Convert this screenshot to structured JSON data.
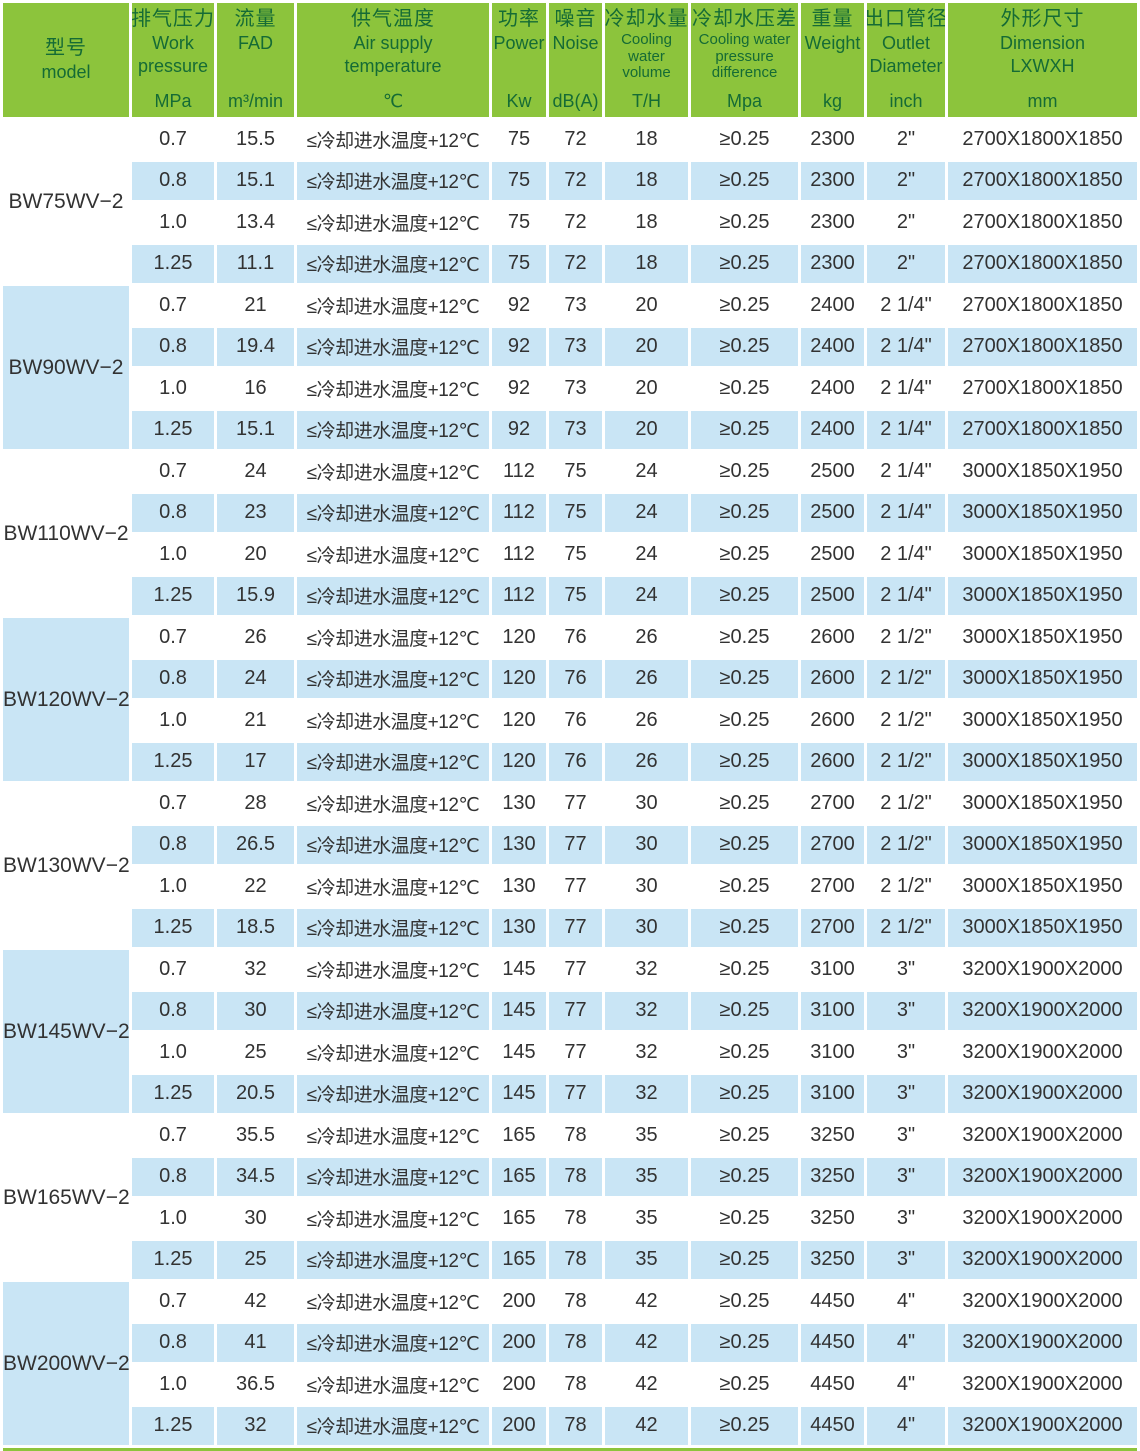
{
  "colors": {
    "header_green": "#8cc43c",
    "header_text_green": "#156b35",
    "row_blue": "#c9e5f5",
    "data_text": "#323232"
  },
  "table": {
    "columns": [
      {
        "id": "model",
        "title": "型号",
        "subtitle_lines": [
          "model"
        ],
        "unit": "",
        "center": true,
        "small": false
      },
      {
        "id": "work_pressure",
        "title": "排气压力",
        "subtitle_lines": [
          "Work",
          "pressure"
        ],
        "unit": "MPa",
        "center": false,
        "small": false
      },
      {
        "id": "fad",
        "title": "流量",
        "subtitle_lines": [
          "FAD"
        ],
        "unit": "m³/min",
        "center": false,
        "small": false
      },
      {
        "id": "air_supply_temp",
        "title": "供气温度",
        "subtitle_lines": [
          "Air supply",
          "temperature"
        ],
        "unit": "℃",
        "center": false,
        "small": false
      },
      {
        "id": "power",
        "title": "功率",
        "subtitle_lines": [
          "Power"
        ],
        "unit": "Kw",
        "center": false,
        "small": false
      },
      {
        "id": "noise",
        "title": "噪音",
        "subtitle_lines": [
          "Noise"
        ],
        "unit": "dB(A)",
        "center": false,
        "small": false
      },
      {
        "id": "cooling_water_volume",
        "title": "冷却水量",
        "subtitle_lines": [
          "Cooling",
          "water",
          "volume"
        ],
        "unit": "T/H",
        "center": false,
        "small": true
      },
      {
        "id": "cooling_water_pressure_diff",
        "title": "冷却水压差",
        "subtitle_lines": [
          "Cooling water",
          "pressure",
          "difference"
        ],
        "unit": "Mpa",
        "center": false,
        "small": true
      },
      {
        "id": "weight",
        "title": "重量",
        "subtitle_lines": [
          "Weight"
        ],
        "unit": "kg",
        "center": false,
        "small": false
      },
      {
        "id": "outlet_diameter",
        "title": "出口管径",
        "subtitle_lines": [
          "Outlet",
          "Diameter"
        ],
        "unit": "inch",
        "center": false,
        "small": false
      },
      {
        "id": "dimension",
        "title": "外形尺寸",
        "subtitle_lines": [
          "Dimension",
          "LXWXH"
        ],
        "unit": "mm",
        "center": false,
        "small": false
      }
    ],
    "groups": [
      {
        "model": "BW75WV−2",
        "rows": [
          [
            "0.7",
            "15.5",
            "≤冷却进水温度+12℃",
            "75",
            "72",
            "18",
            "≥0.25",
            "2300",
            "2\"",
            "2700X1800X1850"
          ],
          [
            "0.8",
            "15.1",
            "≤冷却进水温度+12℃",
            "75",
            "72",
            "18",
            "≥0.25",
            "2300",
            "2\"",
            "2700X1800X1850"
          ],
          [
            "1.0",
            "13.4",
            "≤冷却进水温度+12℃",
            "75",
            "72",
            "18",
            "≥0.25",
            "2300",
            "2\"",
            "2700X1800X1850"
          ],
          [
            "1.25",
            "11.1",
            "≤冷却进水温度+12℃",
            "75",
            "72",
            "18",
            "≥0.25",
            "2300",
            "2\"",
            "2700X1800X1850"
          ]
        ]
      },
      {
        "model": "BW90WV−2",
        "rows": [
          [
            "0.7",
            "21",
            "≤冷却进水温度+12℃",
            "92",
            "73",
            "20",
            "≥0.25",
            "2400",
            "2 1/4\"",
            "2700X1800X1850"
          ],
          [
            "0.8",
            "19.4",
            "≤冷却进水温度+12℃",
            "92",
            "73",
            "20",
            "≥0.25",
            "2400",
            "2 1/4\"",
            "2700X1800X1850"
          ],
          [
            "1.0",
            "16",
            "≤冷却进水温度+12℃",
            "92",
            "73",
            "20",
            "≥0.25",
            "2400",
            "2 1/4\"",
            "2700X1800X1850"
          ],
          [
            "1.25",
            "15.1",
            "≤冷却进水温度+12℃",
            "92",
            "73",
            "20",
            "≥0.25",
            "2400",
            "2 1/4\"",
            "2700X1800X1850"
          ]
        ]
      },
      {
        "model": "BW110WV−2",
        "rows": [
          [
            "0.7",
            "24",
            "≤冷却进水温度+12℃",
            "112",
            "75",
            "24",
            "≥0.25",
            "2500",
            "2 1/4\"",
            "3000X1850X1950"
          ],
          [
            "0.8",
            "23",
            "≤冷却进水温度+12℃",
            "112",
            "75",
            "24",
            "≥0.25",
            "2500",
            "2 1/4\"",
            "3000X1850X1950"
          ],
          [
            "1.0",
            "20",
            "≤冷却进水温度+12℃",
            "112",
            "75",
            "24",
            "≥0.25",
            "2500",
            "2 1/4\"",
            "3000X1850X1950"
          ],
          [
            "1.25",
            "15.9",
            "≤冷却进水温度+12℃",
            "112",
            "75",
            "24",
            "≥0.25",
            "2500",
            "2 1/4\"",
            "3000X1850X1950"
          ]
        ]
      },
      {
        "model": "BW120WV−2",
        "rows": [
          [
            "0.7",
            "26",
            "≤冷却进水温度+12℃",
            "120",
            "76",
            "26",
            "≥0.25",
            "2600",
            "2 1/2\"",
            "3000X1850X1950"
          ],
          [
            "0.8",
            "24",
            "≤冷却进水温度+12℃",
            "120",
            "76",
            "26",
            "≥0.25",
            "2600",
            "2 1/2\"",
            "3000X1850X1950"
          ],
          [
            "1.0",
            "21",
            "≤冷却进水温度+12℃",
            "120",
            "76",
            "26",
            "≥0.25",
            "2600",
            "2 1/2\"",
            "3000X1850X1950"
          ],
          [
            "1.25",
            "17",
            "≤冷却进水温度+12℃",
            "120",
            "76",
            "26",
            "≥0.25",
            "2600",
            "2 1/2\"",
            "3000X1850X1950"
          ]
        ]
      },
      {
        "model": "BW130WV−2",
        "rows": [
          [
            "0.7",
            "28",
            "≤冷却进水温度+12℃",
            "130",
            "77",
            "30",
            "≥0.25",
            "2700",
            "2 1/2\"",
            "3000X1850X1950"
          ],
          [
            "0.8",
            "26.5",
            "≤冷却进水温度+12℃",
            "130",
            "77",
            "30",
            "≥0.25",
            "2700",
            "2 1/2\"",
            "3000X1850X1950"
          ],
          [
            "1.0",
            "22",
            "≤冷却进水温度+12℃",
            "130",
            "77",
            "30",
            "≥0.25",
            "2700",
            "2 1/2\"",
            "3000X1850X1950"
          ],
          [
            "1.25",
            "18.5",
            "≤冷却进水温度+12℃",
            "130",
            "77",
            "30",
            "≥0.25",
            "2700",
            "2 1/2\"",
            "3000X1850X1950"
          ]
        ]
      },
      {
        "model": "BW145WV−2",
        "rows": [
          [
            "0.7",
            "32",
            "≤冷却进水温度+12℃",
            "145",
            "77",
            "32",
            "≥0.25",
            "3100",
            "3\"",
            "3200X1900X2000"
          ],
          [
            "0.8",
            "30",
            "≤冷却进水温度+12℃",
            "145",
            "77",
            "32",
            "≥0.25",
            "3100",
            "3\"",
            "3200X1900X2000"
          ],
          [
            "1.0",
            "25",
            "≤冷却进水温度+12℃",
            "145",
            "77",
            "32",
            "≥0.25",
            "3100",
            "3\"",
            "3200X1900X2000"
          ],
          [
            "1.25",
            "20.5",
            "≤冷却进水温度+12℃",
            "145",
            "77",
            "32",
            "≥0.25",
            "3100",
            "3\"",
            "3200X1900X2000"
          ]
        ]
      },
      {
        "model": "BW165WV−2",
        "rows": [
          [
            "0.7",
            "35.5",
            "≤冷却进水温度+12℃",
            "165",
            "78",
            "35",
            "≥0.25",
            "3250",
            "3\"",
            "3200X1900X2000"
          ],
          [
            "0.8",
            "34.5",
            "≤冷却进水温度+12℃",
            "165",
            "78",
            "35",
            "≥0.25",
            "3250",
            "3\"",
            "3200X1900X2000"
          ],
          [
            "1.0",
            "30",
            "≤冷却进水温度+12℃",
            "165",
            "78",
            "35",
            "≥0.25",
            "3250",
            "3\"",
            "3200X1900X2000"
          ],
          [
            "1.25",
            "25",
            "≤冷却进水温度+12℃",
            "165",
            "78",
            "35",
            "≥0.25",
            "3250",
            "3\"",
            "3200X1900X2000"
          ]
        ]
      },
      {
        "model": "BW200WV−2",
        "rows": [
          [
            "0.7",
            "42",
            "≤冷却进水温度+12℃",
            "200",
            "78",
            "42",
            "≥0.25",
            "4450",
            "4\"",
            "3200X1900X2000"
          ],
          [
            "0.8",
            "41",
            "≤冷却进水温度+12℃",
            "200",
            "78",
            "42",
            "≥0.25",
            "4450",
            "4\"",
            "3200X1900X2000"
          ],
          [
            "1.0",
            "36.5",
            "≤冷却进水温度+12℃",
            "200",
            "78",
            "42",
            "≥0.25",
            "4450",
            "4\"",
            "3200X1900X2000"
          ],
          [
            "1.25",
            "32",
            "≤冷却进水温度+12℃",
            "200",
            "78",
            "42",
            "≥0.25",
            "4450",
            "4\"",
            "3200X1900X2000"
          ]
        ]
      }
    ]
  }
}
